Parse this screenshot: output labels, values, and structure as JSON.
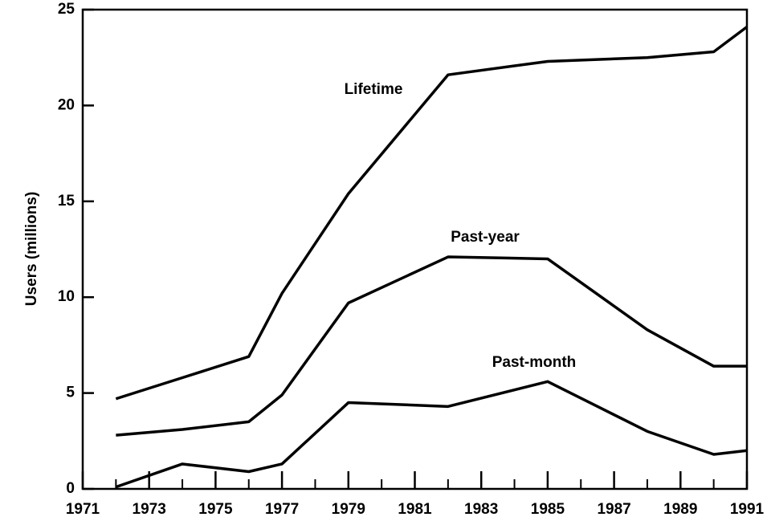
{
  "chart_data": {
    "type": "line",
    "ylabel": "Users (millions)",
    "x": [
      1972,
      1974,
      1976,
      1977,
      1979,
      1982,
      1985,
      1988,
      1990,
      1991
    ],
    "series": [
      {
        "name": "Lifetime",
        "color": "#000000",
        "values": [
          4.7,
          5.8,
          6.9,
          10.2,
          15.4,
          21.6,
          22.3,
          22.5,
          22.8,
          24.1
        ]
      },
      {
        "name": "Past-year",
        "color": "#000000",
        "values": [
          2.8,
          3.1,
          3.5,
          4.9,
          9.7,
          12.1,
          12.0,
          8.3,
          6.4,
          6.4
        ]
      },
      {
        "name": "Past-month",
        "color": "#000000",
        "values": [
          0.1,
          1.3,
          0.9,
          1.3,
          4.5,
          4.3,
          5.6,
          3.0,
          1.8,
          2.0
        ]
      }
    ],
    "xlim": [
      1971,
      1991
    ],
    "xticks": [
      1971,
      1973,
      1975,
      1977,
      1979,
      1981,
      1983,
      1985,
      1987,
      1989,
      1991
    ],
    "xminorticks": [
      1972,
      1974,
      1976,
      1978,
      1980,
      1982,
      1984,
      1986,
      1988,
      1990
    ],
    "ylim": [
      0,
      25
    ],
    "yticks": [
      0,
      5,
      10,
      15,
      20,
      25
    ]
  }
}
